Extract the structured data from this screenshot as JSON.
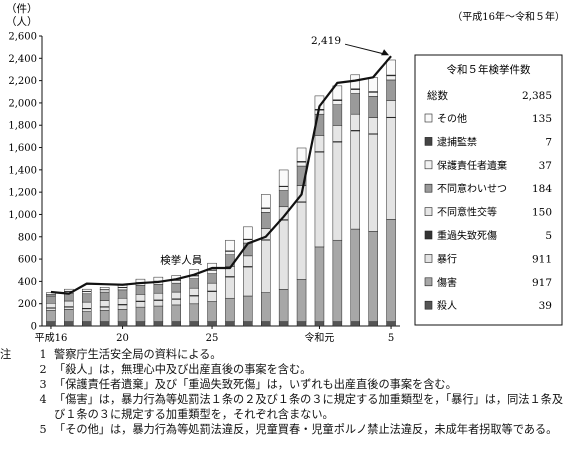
{
  "chart_data": {
    "type": "bar",
    "unit_top": "（件）",
    "unit_bottom": "（人）",
    "period_note": "（平成16年～令和５年）",
    "line_label": "検挙人員",
    "peak_label": "2,419",
    "ylim": [
      0,
      2600
    ],
    "y_ticks": [
      "0",
      "200",
      "400",
      "600",
      "800",
      "1,000",
      "1,200",
      "1,400",
      "1,600",
      "1,800",
      "2,000",
      "2,200",
      "2,400",
      "2,600"
    ],
    "x_tick_labels": [
      {
        "index": 0,
        "label": "平成16"
      },
      {
        "index": 4,
        "label": "20"
      },
      {
        "index": 9,
        "label": "25"
      },
      {
        "index": 15,
        "label": "令和元"
      },
      {
        "index": 19,
        "label": "5"
      }
    ],
    "categories": [
      "平成16",
      "17",
      "18",
      "19",
      "20",
      "21",
      "22",
      "23",
      "24",
      "25",
      "26",
      "27",
      "28",
      "29",
      "30",
      "令和元",
      "2",
      "3",
      "4",
      "5"
    ],
    "stack_order": [
      "殺人",
      "傷害",
      "暴行",
      "重過失致死傷",
      "不同意性交等",
      "不同意わいせつ",
      "保護責任者遺棄",
      "逮捕監禁",
      "その他"
    ],
    "series": [
      {
        "name": "殺人",
        "color": "#555555",
        "values": [
          39,
          39,
          39,
          39,
          39,
          39,
          39,
          39,
          39,
          39,
          39,
          39,
          39,
          39,
          39,
          39,
          39,
          39,
          39,
          39
        ]
      },
      {
        "name": "傷害",
        "color": "#a7a7a7",
        "values": [
          100,
          110,
          90,
          100,
          110,
          130,
          140,
          150,
          160,
          180,
          210,
          230,
          260,
          290,
          380,
          670,
          730,
          830,
          810,
          917
        ]
      },
      {
        "name": "暴行",
        "color": "#e3e3e3",
        "values": [
          20,
          20,
          25,
          30,
          40,
          50,
          50,
          50,
          70,
          90,
          190,
          260,
          470,
          620,
          690,
          850,
          880,
          880,
          870,
          911
        ]
      },
      {
        "name": "重過失致死傷",
        "color": "#333333",
        "values": [
          5,
          5,
          5,
          5,
          5,
          5,
          5,
          5,
          5,
          5,
          5,
          5,
          5,
          5,
          5,
          5,
          5,
          5,
          5,
          5
        ]
      },
      {
        "name": "不同意性交等",
        "color": "#e6e6e6",
        "values": [
          40,
          50,
          55,
          55,
          55,
          60,
          60,
          60,
          65,
          70,
          90,
          95,
          100,
          115,
          145,
          145,
          145,
          145,
          145,
          150
        ]
      },
      {
        "name": "不同意わいせつ",
        "color": "#9a9a9a",
        "values": [
          65,
          70,
          75,
          75,
          75,
          80,
          80,
          80,
          85,
          85,
          105,
          115,
          145,
          145,
          175,
          190,
          185,
          185,
          190,
          184
        ]
      },
      {
        "name": "保護責任者遺棄",
        "color": "#f2f2f2",
        "values": [
          10,
          15,
          20,
          20,
          20,
          22,
          25,
          25,
          25,
          30,
          30,
          30,
          35,
          35,
          35,
          37,
          37,
          36,
          36,
          37
        ]
      },
      {
        "name": "逮捕監禁",
        "color": "#444444",
        "values": [
          3,
          3,
          3,
          3,
          3,
          4,
          4,
          4,
          4,
          4,
          5,
          5,
          5,
          5,
          7,
          7,
          7,
          7,
          7,
          7
        ]
      },
      {
        "name": "その他",
        "color": "#fafafa",
        "values": [
          18,
          18,
          18,
          20,
          25,
          30,
          35,
          40,
          55,
          60,
          95,
          110,
          120,
          145,
          120,
          120,
          125,
          125,
          125,
          135
        ]
      }
    ],
    "line_values": [
      305,
      290,
      380,
      375,
      370,
      385,
      395,
      420,
      460,
      520,
      520,
      740,
      800,
      980,
      1180,
      1970,
      2180,
      2200,
      2230,
      2419
    ],
    "legend": {
      "title": "令和５年検挙件数",
      "total_label": "総数",
      "total_value": "2,385",
      "items": [
        {
          "name": "その他",
          "value": "135"
        },
        {
          "name": "逮捕監禁",
          "value": "7"
        },
        {
          "name": "保護責任者遺棄",
          "value": "37"
        },
        {
          "name": "不同意わいせつ",
          "value": "184"
        },
        {
          "name": "不同意性交等",
          "value": "150"
        },
        {
          "name": "重過失致死傷",
          "value": "5"
        },
        {
          "name": "暴行",
          "value": "911"
        },
        {
          "name": "傷害",
          "value": "917"
        },
        {
          "name": "殺人",
          "value": "39"
        }
      ]
    }
  },
  "notes": [
    {
      "head": "注",
      "num": "1",
      "text": "警察庁生活安全局の資料による。"
    },
    {
      "head": "",
      "num": "2",
      "text": "「殺人」は，無理心中及び出産直後の事案を含む。"
    },
    {
      "head": "",
      "num": "3",
      "text": "「保護責任者遺棄」及び「重過失致死傷」は，いずれも出産直後の事案を含む。"
    },
    {
      "head": "",
      "num": "4",
      "text": "「傷害」は，暴力行為等処罰法１条の２及び１条の３に規定する加重類型を，「暴行」は，同法１条及び１条の３に規定する加重類型を，それぞれ含まない。"
    },
    {
      "head": "",
      "num": "5",
      "text": "「その他」は，暴力行為等処罰法違反，児童買春・児童ポルノ禁止法違反，未成年者拐取等である。"
    }
  ]
}
